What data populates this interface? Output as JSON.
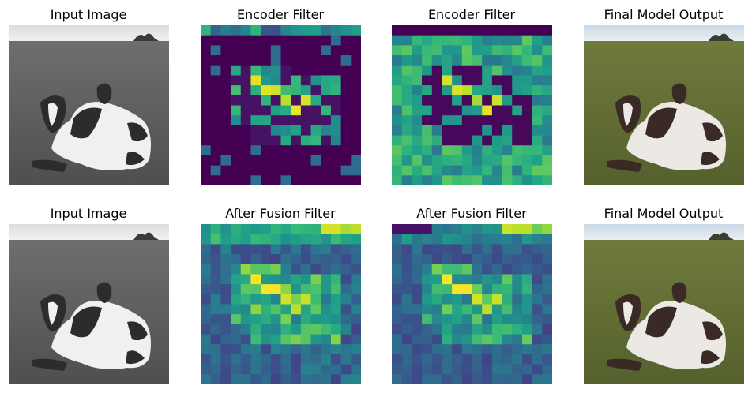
{
  "rows": [
    {
      "panels": [
        {
          "title": "Input Image",
          "kind": "photo",
          "mode": "gray"
        },
        {
          "title": "Encoder Filter",
          "kind": "heatmap",
          "variant": "encoder1"
        },
        {
          "title": "Encoder Filter",
          "kind": "heatmap",
          "variant": "encoder2"
        },
        {
          "title": "Final Model Output",
          "kind": "photo",
          "mode": "color"
        }
      ]
    },
    {
      "panels": [
        {
          "title": "Input Image",
          "kind": "photo",
          "mode": "gray"
        },
        {
          "title": "After Fusion Filter",
          "kind": "heatmap",
          "variant": "fusion1"
        },
        {
          "title": "After Fusion Filter",
          "kind": "heatmap",
          "variant": "fusion2"
        },
        {
          "title": "Final Model Output",
          "kind": "photo",
          "mode": "color"
        }
      ]
    }
  ],
  "colormap": "viridis",
  "colors": {
    "viridis_low": "#440154",
    "viridis_high": "#fde725"
  }
}
